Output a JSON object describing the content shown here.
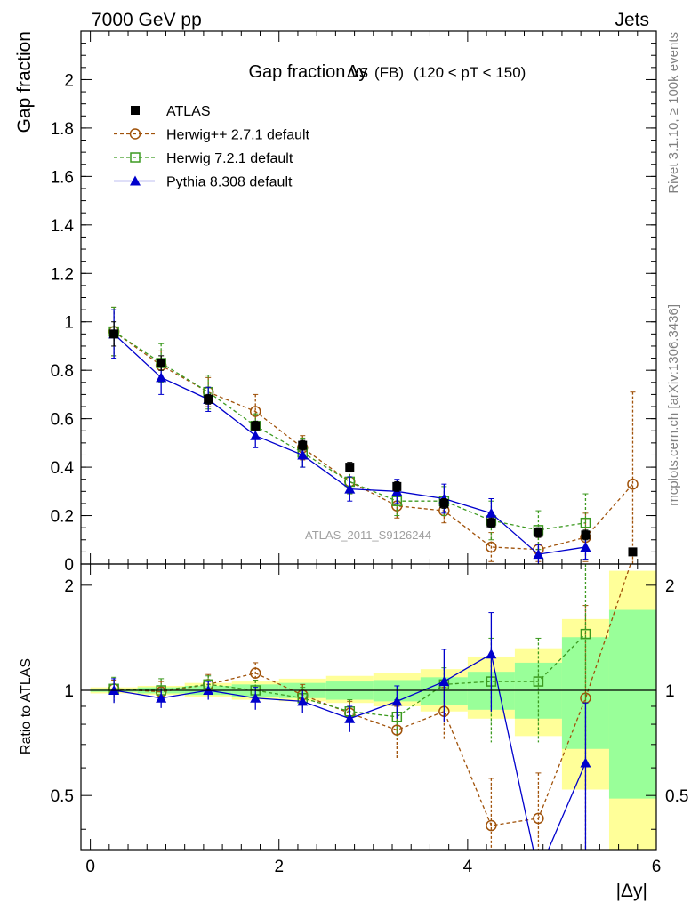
{
  "header": {
    "left": "7000 GeV pp",
    "right": "Jets",
    "side_top": "Rivet 3.1.10, ≥ 100k events",
    "side_bottom": "mcplots.cern.ch [arXiv:1306.3436]"
  },
  "chart_data": [
    {
      "type": "line",
      "title_main": "Gap fraction vs",
      "title_var": "Δy",
      "title_fb": "(FB)",
      "title_cut": "(120 < pT < 150)",
      "ylabel": "Gap fraction",
      "watermark": "ATLAS_2011_S9126244",
      "ylim": [
        0,
        2.2
      ],
      "y_ticks": [
        "0",
        "0.2",
        "0.4",
        "0.6",
        "0.8",
        "1",
        "1.2",
        "1.4",
        "1.6",
        "1.8",
        "2"
      ],
      "x": [
        0.25,
        0.75,
        1.25,
        1.75,
        2.25,
        2.75,
        3.25,
        3.75,
        4.25,
        4.75,
        5.25,
        5.75
      ],
      "series": [
        {
          "name": "ATLAS",
          "color": "#000000",
          "marker": "filled-square",
          "values": [
            0.95,
            0.83,
            0.68,
            0.57,
            0.49,
            0.4,
            0.32,
            0.25,
            0.17,
            0.13,
            0.12,
            0.05
          ],
          "errors": [
            0.05,
            0.03,
            0.02,
            0.02,
            0.02,
            0.02,
            0.02,
            0.02,
            0.02,
            0.02,
            0.02,
            0.01
          ]
        },
        {
          "name": "Herwig++ 2.7.1 default",
          "color": "#a0520a",
          "marker": "open-circle",
          "values": [
            0.96,
            0.82,
            0.71,
            0.63,
            0.48,
            0.34,
            0.24,
            0.22,
            0.07,
            0.06,
            0.11,
            0.33
          ],
          "errors": [
            0.1,
            0.06,
            0.06,
            0.07,
            0.05,
            0.05,
            0.05,
            0.05,
            0.06,
            0.05,
            0.1,
            0.38
          ]
        },
        {
          "name": "Herwig 7.2.1 default",
          "color": "#3c9a20",
          "marker": "open-square",
          "values": [
            0.96,
            0.83,
            0.71,
            0.57,
            0.46,
            0.34,
            0.26,
            0.26,
            0.18,
            0.14,
            0.17,
            null
          ],
          "errors": [
            0.1,
            0.08,
            0.07,
            0.05,
            0.06,
            0.05,
            0.06,
            0.06,
            0.08,
            0.08,
            0.12,
            null
          ]
        },
        {
          "name": "Pythia 8.308 default",
          "color": "#0000cc",
          "marker": "filled-triangle",
          "values": [
            0.95,
            0.77,
            0.68,
            0.53,
            0.45,
            0.31,
            0.3,
            0.27,
            0.21,
            0.04,
            0.07,
            null
          ],
          "errors": [
            0.1,
            0.07,
            0.05,
            0.05,
            0.05,
            0.05,
            0.05,
            0.06,
            0.06,
            0.04,
            0.05,
            null
          ]
        }
      ]
    },
    {
      "type": "line",
      "ylabel": "Ratio to ATLAS",
      "xlabel": "|Δy|",
      "ylim": [
        0.35,
        2.3
      ],
      "y_scale": "log",
      "xlim": [
        -0.1,
        6.0
      ],
      "x_ticks": [
        "0",
        "2",
        "4",
        "6"
      ],
      "y_ticks": [
        "0.5",
        "1",
        "2"
      ],
      "bands": {
        "edges": [
          0.0,
          0.5,
          1.0,
          1.5,
          2.0,
          2.5,
          3.0,
          3.5,
          4.0,
          4.5,
          5.0,
          5.5,
          6.0
        ],
        "yellow": [
          [
            0.98,
            1.02
          ],
          [
            0.97,
            1.03
          ],
          [
            0.96,
            1.05
          ],
          [
            0.94,
            1.06
          ],
          [
            0.93,
            1.08
          ],
          [
            0.92,
            1.1
          ],
          [
            0.9,
            1.12
          ],
          [
            0.87,
            1.15
          ],
          [
            0.83,
            1.25
          ],
          [
            0.74,
            1.32
          ],
          [
            0.52,
            1.6
          ],
          [
            0.35,
            2.2
          ]
        ],
        "green": [
          [
            0.99,
            1.01
          ],
          [
            0.98,
            1.02
          ],
          [
            0.97,
            1.03
          ],
          [
            0.96,
            1.04
          ],
          [
            0.95,
            1.05
          ],
          [
            0.94,
            1.06
          ],
          [
            0.93,
            1.07
          ],
          [
            0.91,
            1.09
          ],
          [
            0.88,
            1.13
          ],
          [
            0.83,
            1.2
          ],
          [
            0.68,
            1.42
          ],
          [
            0.49,
            1.7
          ]
        ],
        "band_colors": {
          "yellow": "#ffff99",
          "green": "#99ff99"
        }
      },
      "series": [
        {
          "name": "Herwig++ 2.7.1 default",
          "color": "#a0520a",
          "marker": "open-circle",
          "values": [
            1.01,
            0.99,
            1.04,
            1.12,
            0.97,
            0.86,
            0.77,
            0.87,
            0.41,
            0.43,
            0.95,
            2.4
          ],
          "errors": [
            0.06,
            0.07,
            0.07,
            0.08,
            0.07,
            0.07,
            0.13,
            0.15,
            0.15,
            0.15,
            0.8,
            0.0
          ]
        },
        {
          "name": "Herwig 7.2.1 default",
          "color": "#3c9a20",
          "marker": "open-square",
          "values": [
            1.01,
            1.0,
            1.04,
            1.0,
            0.95,
            0.87,
            0.84,
            1.04,
            1.06,
            1.06,
            1.45,
            null
          ],
          "errors": [
            0.08,
            0.08,
            0.06,
            0.07,
            0.07,
            0.07,
            0.1,
            0.12,
            0.35,
            0.35,
            0.85,
            null
          ]
        },
        {
          "name": "Pythia 8.308 default",
          "color": "#0000cc",
          "marker": "filled-triangle",
          "values": [
            1.0,
            0.95,
            1.0,
            0.95,
            0.93,
            0.83,
            0.93,
            1.06,
            1.27,
            0.3,
            0.62,
            null
          ],
          "errors": [
            0.08,
            0.06,
            0.06,
            0.07,
            0.07,
            0.07,
            0.1,
            0.25,
            0.4,
            0.0,
            0.3,
            null
          ]
        }
      ]
    }
  ]
}
